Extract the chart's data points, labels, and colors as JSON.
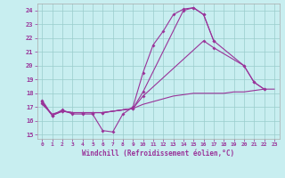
{
  "bg_color": "#c8eef0",
  "grid_color": "#99cccc",
  "line_color": "#993399",
  "xlabel": "Windchill (Refroidissement éolien,°C)",
  "xlim": [
    -0.5,
    23.5
  ],
  "ylim": [
    14.7,
    24.5
  ],
  "yticks": [
    15,
    16,
    17,
    18,
    19,
    20,
    21,
    22,
    23,
    24
  ],
  "xticks": [
    0,
    1,
    2,
    3,
    4,
    5,
    6,
    7,
    8,
    9,
    10,
    11,
    12,
    13,
    14,
    15,
    16,
    17,
    18,
    19,
    20,
    21,
    22,
    23
  ],
  "line1_x": [
    0,
    1,
    2,
    3,
    4,
    5,
    6,
    7,
    8,
    9,
    10,
    11,
    12,
    13,
    14,
    15,
    16,
    17
  ],
  "line1_y": [
    17.5,
    16.4,
    16.8,
    16.5,
    16.5,
    16.5,
    15.3,
    15.2,
    16.5,
    17.0,
    19.5,
    21.5,
    22.5,
    23.7,
    24.1,
    24.2,
    23.7,
    21.8
  ],
  "line2_x": [
    0,
    1,
    2,
    3,
    4,
    5,
    6,
    9,
    10,
    14,
    15,
    16,
    17,
    20,
    21,
    22
  ],
  "line2_y": [
    17.4,
    16.4,
    16.7,
    16.6,
    16.6,
    16.6,
    16.6,
    16.9,
    18.1,
    24.0,
    24.2,
    23.7,
    21.8,
    20.0,
    18.8,
    18.3
  ],
  "line3_x": [
    0,
    1,
    2,
    3,
    4,
    5,
    6,
    9,
    10,
    16,
    17,
    20,
    21,
    22
  ],
  "line3_y": [
    17.3,
    16.4,
    16.7,
    16.6,
    16.6,
    16.6,
    16.6,
    16.9,
    17.8,
    21.8,
    21.3,
    20.0,
    18.8,
    18.3
  ],
  "line4_x": [
    0,
    1,
    2,
    3,
    4,
    5,
    6,
    7,
    8,
    9,
    10,
    11,
    12,
    13,
    14,
    15,
    16,
    17,
    18,
    19,
    20,
    21,
    22,
    23
  ],
  "line4_y": [
    17.2,
    16.5,
    16.7,
    16.6,
    16.6,
    16.6,
    16.6,
    16.7,
    16.8,
    16.9,
    17.2,
    17.4,
    17.6,
    17.8,
    17.9,
    18.0,
    18.0,
    18.0,
    18.0,
    18.1,
    18.1,
    18.2,
    18.3,
    18.3
  ]
}
